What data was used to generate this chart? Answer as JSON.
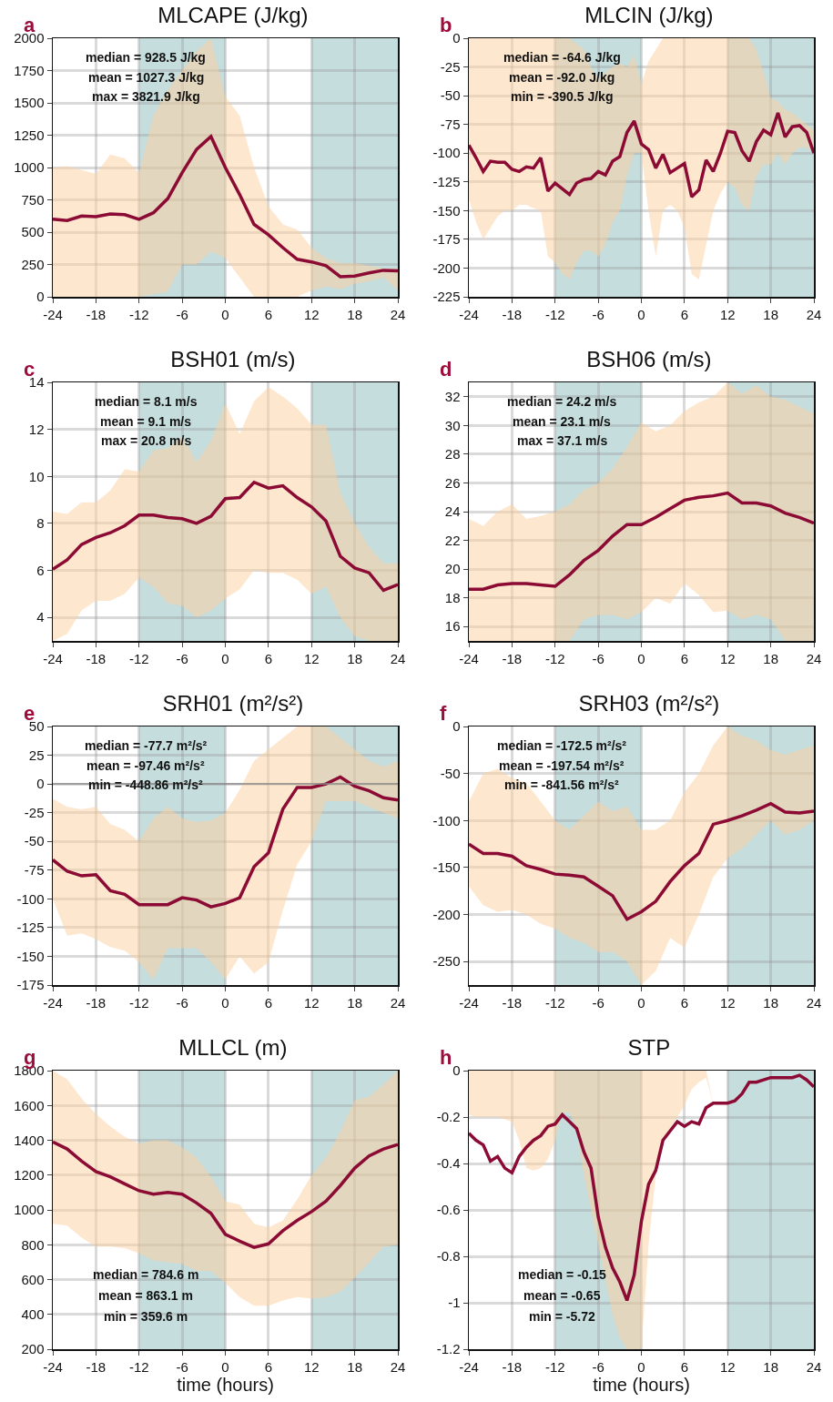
{
  "chart_data": [
    {
      "type": "line",
      "title": "MLCAPE (J/kg)",
      "annotations": [
        "a",
        "median = 928.5 J/kg",
        "mean = 1027.3 J/kg",
        "max = 3821.9 J/kg"
      ],
      "x": [
        -24,
        -22,
        -20,
        -18,
        -16,
        -14,
        -12,
        -10,
        -8,
        -6,
        -4,
        -2,
        0,
        2,
        4,
        6,
        8,
        10,
        12,
        14,
        16,
        18,
        20,
        22,
        24
      ],
      "series": [
        {
          "color": "#8c0b34",
          "values": [
            600,
            590,
            625,
            620,
            640,
            635,
            600,
            650,
            760,
            960,
            1140,
            1240,
            1000,
            790,
            560,
            480,
            380,
            290,
            270,
            240,
            155,
            160,
            185,
            205,
            200
          ],
          "upper": [
            1000,
            1010,
            980,
            950,
            1100,
            1070,
            960,
            1400,
            1600,
            1750,
            1900,
            2000,
            1550,
            1400,
            1000,
            700,
            560,
            520,
            380,
            300,
            260,
            260,
            240,
            220,
            220
          ],
          "lower": [
            0,
            0,
            0,
            0,
            0,
            0,
            0,
            20,
            40,
            250,
            250,
            350,
            300,
            150,
            0,
            0,
            0,
            0,
            50,
            80,
            60,
            100,
            120,
            150,
            50
          ]
        }
      ],
      "xlim": [
        -24,
        24
      ],
      "xticks": [
        -24,
        -18,
        -12,
        -6,
        0,
        6,
        12,
        18,
        24
      ],
      "ylim": [
        0,
        2000
      ],
      "yticks": [
        0,
        250,
        500,
        750,
        1000,
        1250,
        1500,
        1750,
        2000
      ],
      "bands": [
        {
          "axis": "x",
          "from": -12,
          "to": 0,
          "color": "#a7cbcb"
        },
        {
          "axis": "x",
          "from": 12,
          "to": 24,
          "color": "#a7cbcb"
        }
      ],
      "grid": true
    },
    {
      "type": "line",
      "title": "MLCIN (J/kg)",
      "annotations": [
        "b",
        "median = -64.6 J/kg",
        "mean = -92.0 J/kg",
        "min = -390.5 J/kg"
      ],
      "x": [
        -24,
        -23,
        -22,
        -21,
        -20,
        -19,
        -18,
        -17,
        -16,
        -15,
        -14,
        -13,
        -12,
        -11,
        -10,
        -9,
        -8,
        -7,
        -6,
        -5,
        -4,
        -3,
        -2,
        -1,
        0,
        1,
        2,
        3,
        4,
        5,
        6,
        7,
        8,
        9,
        10,
        11,
        12,
        13,
        14,
        15,
        16,
        17,
        18,
        19,
        20,
        21,
        22,
        23,
        24
      ],
      "series": [
        {
          "color": "#8c0b34",
          "values": [
            -93,
            -104,
            -116,
            -107,
            -108,
            -108,
            -114,
            -116,
            -112,
            -113,
            -104,
            -133,
            -126,
            -131,
            -136,
            -126,
            -123,
            -122,
            -116,
            -119,
            -107,
            -103,
            -82,
            -72,
            -92,
            -97,
            -113,
            -101,
            -117,
            -113,
            -109,
            -138,
            -132,
            -106,
            -116,
            -100,
            -81,
            -82,
            -98,
            -107,
            -90,
            -80,
            -84,
            -65,
            -86,
            -77,
            -76,
            -82,
            -100
          ],
          "upper": [
            0,
            0,
            0,
            0,
            0,
            0,
            0,
            0,
            0,
            0,
            0,
            0,
            0,
            0,
            0,
            -5,
            -10,
            -25,
            -35,
            -30,
            -25,
            -22,
            -25,
            -15,
            -40,
            -20,
            -10,
            0,
            0,
            0,
            0,
            0,
            0,
            0,
            0,
            0,
            0,
            0,
            0,
            0,
            -10,
            -30,
            -52,
            -55,
            -62,
            -65,
            -70,
            -75,
            -80
          ],
          "lower": [
            -140,
            -160,
            -175,
            -165,
            -155,
            -150,
            -150,
            -145,
            -145,
            -148,
            -150,
            -190,
            -195,
            -205,
            -210,
            -195,
            -185,
            -185,
            -190,
            -180,
            -160,
            -150,
            -120,
            -100,
            -100,
            -150,
            -190,
            -150,
            -145,
            -150,
            -165,
            -205,
            -210,
            -180,
            -150,
            -135,
            -125,
            -130,
            -145,
            -150,
            -120,
            -110,
            -110,
            -100,
            -110,
            -100,
            -95,
            -95,
            -100
          ]
        }
      ],
      "xlim": [
        -24,
        24
      ],
      "xticks": [
        -24,
        -18,
        -12,
        -6,
        0,
        6,
        12,
        18,
        24
      ],
      "ylim": [
        -225,
        0
      ],
      "yticks": [
        -225,
        -200,
        -175,
        -150,
        -125,
        -100,
        -75,
        -50,
        -25,
        0
      ],
      "bands": [
        {
          "axis": "x",
          "from": -12,
          "to": 0,
          "color": "#a7cbcb"
        },
        {
          "axis": "x",
          "from": 12,
          "to": 24,
          "color": "#a7cbcb"
        }
      ],
      "grid": true
    },
    {
      "type": "line",
      "title": "BSH01 (m/s)",
      "annotations": [
        "c",
        "median = 8.1 m/s",
        "mean = 9.1 m/s",
        "max = 20.8 m/s"
      ],
      "x": [
        -24,
        -22,
        -20,
        -18,
        -16,
        -14,
        -12,
        -10,
        -8,
        -6,
        -4,
        -2,
        0,
        2,
        4,
        6,
        8,
        10,
        12,
        14,
        16,
        18,
        20,
        22,
        24
      ],
      "series": [
        {
          "color": "#8c0b34",
          "values": [
            6.05,
            6.45,
            7.1,
            7.4,
            7.6,
            7.9,
            8.35,
            8.35,
            8.25,
            8.2,
            8.0,
            8.3,
            9.05,
            9.1,
            9.75,
            9.5,
            9.6,
            9.1,
            8.7,
            8.1,
            6.6,
            6.1,
            5.9,
            5.15,
            5.4
          ],
          "upper": [
            8.5,
            8.4,
            8.9,
            8.9,
            9.4,
            10.3,
            10.2,
            11.1,
            11.2,
            11.7,
            10.6,
            11.5,
            13.1,
            11.8,
            13.2,
            13.8,
            13.4,
            12.9,
            12.2,
            12.2,
            9.3,
            8.0,
            7.0,
            6.3,
            6.3
          ],
          "lower": [
            3.0,
            3.3,
            4.3,
            4.7,
            4.7,
            5.0,
            5.7,
            5.3,
            4.6,
            4.5,
            4.0,
            4.3,
            4.8,
            5.2,
            6.0,
            5.9,
            5.9,
            5.6,
            5.0,
            5.3,
            4.0,
            3.2,
            3.0,
            3.0,
            3.0
          ]
        }
      ],
      "xlim": [
        -24,
        24
      ],
      "xticks": [
        -24,
        -18,
        -12,
        -6,
        0,
        6,
        12,
        18,
        24
      ],
      "ylim": [
        3,
        14
      ],
      "yticks": [
        4,
        6,
        8,
        10,
        12,
        14
      ],
      "bands": [
        {
          "axis": "x",
          "from": -12,
          "to": 0,
          "color": "#a7cbcb"
        },
        {
          "axis": "x",
          "from": 12,
          "to": 24,
          "color": "#a7cbcb"
        }
      ],
      "grid": true
    },
    {
      "type": "line",
      "title": "BSH06 (m/s)",
      "annotations": [
        "d",
        "median = 24.2 m/s",
        "mean = 23.1 m/s",
        "max = 37.1 m/s"
      ],
      "x": [
        -24,
        -22,
        -20,
        -18,
        -16,
        -14,
        -12,
        -10,
        -8,
        -6,
        -4,
        -2,
        0,
        2,
        4,
        6,
        8,
        10,
        12,
        14,
        16,
        18,
        20,
        22,
        24
      ],
      "series": [
        {
          "color": "#8c0b34",
          "values": [
            18.6,
            18.6,
            18.9,
            19.0,
            19.0,
            18.9,
            18.8,
            19.6,
            20.6,
            21.3,
            22.3,
            23.1,
            23.1,
            23.6,
            24.2,
            24.8,
            25.0,
            25.1,
            25.3,
            24.6,
            24.6,
            24.4,
            23.9,
            23.6,
            23.2
          ],
          "upper": [
            23.5,
            23.0,
            24.0,
            24.5,
            23.5,
            23.7,
            24.0,
            24.5,
            25.5,
            26.0,
            27.0,
            28.5,
            30.2,
            29.6,
            30.0,
            31.0,
            31.6,
            32.0,
            33.0,
            32.2,
            32.8,
            32.0,
            31.8,
            31.3,
            30.8
          ],
          "lower": [
            15.0,
            15.0,
            15.0,
            15.0,
            15.0,
            15.0,
            15.0,
            15.0,
            16.5,
            16.8,
            16.8,
            16.5,
            17.0,
            18.0,
            17.6,
            19.0,
            18.2,
            17.0,
            17.1,
            16.5,
            16.8,
            16.5,
            15.0,
            15.0,
            15.0
          ]
        }
      ],
      "xlim": [
        -24,
        24
      ],
      "xticks": [
        -24,
        -18,
        -12,
        -6,
        0,
        6,
        12,
        18,
        24
      ],
      "ylim": [
        15,
        33
      ],
      "yticks": [
        16,
        18,
        20,
        22,
        24,
        26,
        28,
        30,
        32
      ],
      "bands": [
        {
          "axis": "x",
          "from": -12,
          "to": 0,
          "color": "#a7cbcb"
        },
        {
          "axis": "x",
          "from": 12,
          "to": 24,
          "color": "#a7cbcb"
        }
      ],
      "grid": true
    },
    {
      "type": "line",
      "title": "SRH01 (m²/s²)",
      "annotations": [
        "e",
        "median = -77.7 m²/s²",
        "mean = -97.46 m²/s²",
        "min = -448.86 m²/s²"
      ],
      "x": [
        -24,
        -22,
        -20,
        -18,
        -16,
        -14,
        -12,
        -10,
        -8,
        -6,
        -4,
        -2,
        0,
        2,
        4,
        6,
        8,
        10,
        12,
        14,
        16,
        18,
        20,
        22,
        24
      ],
      "series": [
        {
          "color": "#8c0b34",
          "values": [
            -66,
            -76,
            -80,
            -79,
            -93,
            -96,
            -105,
            -105,
            -105,
            -99,
            -101,
            -107,
            -104,
            -99,
            -72,
            -60,
            -22,
            -3,
            -3,
            0,
            6,
            -2,
            -6,
            -12,
            -14
          ],
          "upper": [
            -13,
            -20,
            -22,
            -20,
            -35,
            -40,
            -50,
            -30,
            -20,
            -30,
            -33,
            -32,
            -25,
            -5,
            20,
            30,
            40,
            50,
            50,
            50,
            40,
            30,
            20,
            15,
            20
          ],
          "lower": [
            -100,
            -132,
            -130,
            -135,
            -142,
            -145,
            -155,
            -170,
            -143,
            -143,
            -143,
            -155,
            -170,
            -150,
            -165,
            -155,
            -110,
            -70,
            -50,
            -15,
            -15,
            -15,
            -20,
            -25,
            -30
          ]
        }
      ],
      "xlim": [
        -24,
        24
      ],
      "xticks": [
        -24,
        -18,
        -12,
        -6,
        0,
        6,
        12,
        18,
        24
      ],
      "ylim": [
        -175,
        50
      ],
      "yticks": [
        -175,
        -150,
        -125,
        -100,
        -75,
        -50,
        -25,
        0,
        25,
        50
      ],
      "ref_lines": [
        {
          "axis": "y",
          "value": 0,
          "color": "#8a8a8a"
        }
      ],
      "bands": [
        {
          "axis": "x",
          "from": -12,
          "to": 0,
          "color": "#a7cbcb"
        },
        {
          "axis": "x",
          "from": 12,
          "to": 24,
          "color": "#a7cbcb"
        }
      ],
      "grid": true
    },
    {
      "type": "line",
      "title": "SRH03 (m²/s²)",
      "annotations": [
        "f",
        "median = -172.5 m²/s²",
        "mean = -197.54 m²/s²",
        "min = -841.56 m²/s²"
      ],
      "x": [
        -24,
        -22,
        -20,
        -18,
        -16,
        -14,
        -12,
        -10,
        -8,
        -6,
        -4,
        -2,
        0,
        2,
        4,
        6,
        8,
        10,
        12,
        14,
        16,
        18,
        20,
        22,
        24
      ],
      "series": [
        {
          "color": "#8c0b34",
          "values": [
            -125,
            -135,
            -135,
            -138,
            -148,
            -152,
            -157,
            -158,
            -160,
            -170,
            -180,
            -205,
            -197,
            -186,
            -165,
            -148,
            -135,
            -104,
            -100,
            -95,
            -89,
            -82,
            -91,
            -92,
            -90
          ],
          "upper": [
            -80,
            -50,
            -45,
            -55,
            -60,
            -80,
            -100,
            -110,
            -95,
            -80,
            -90,
            -85,
            -110,
            -110,
            -100,
            -70,
            -50,
            -20,
            0,
            -10,
            -15,
            -25,
            -30,
            -25,
            -20
          ],
          "lower": [
            -170,
            -190,
            -197,
            -195,
            -200,
            -210,
            -215,
            -225,
            -230,
            -240,
            -240,
            -250,
            -275,
            -260,
            -225,
            -235,
            -200,
            -160,
            -140,
            -130,
            -115,
            -100,
            -115,
            -110,
            -100
          ]
        }
      ],
      "xlim": [
        -24,
        24
      ],
      "xticks": [
        -24,
        -18,
        -12,
        -6,
        0,
        6,
        12,
        18,
        24
      ],
      "ylim": [
        -275,
        0
      ],
      "yticks": [
        -250,
        -200,
        -150,
        -100,
        -50,
        0
      ],
      "bands": [
        {
          "axis": "x",
          "from": -12,
          "to": 0,
          "color": "#a7cbcb"
        },
        {
          "axis": "x",
          "from": 12,
          "to": 24,
          "color": "#a7cbcb"
        }
      ],
      "grid": true
    },
    {
      "type": "line",
      "title": "MLLCL (m)",
      "xlabel": "time (hours)",
      "annotations": [
        "g",
        "median = 784.6 m",
        "mean = 863.1 m",
        "min = 359.6 m"
      ],
      "x": [
        -24,
        -22,
        -20,
        -18,
        -16,
        -14,
        -12,
        -10,
        -8,
        -6,
        -4,
        -2,
        0,
        2,
        4,
        6,
        8,
        10,
        12,
        14,
        16,
        18,
        20,
        22,
        24
      ],
      "series": [
        {
          "color": "#8c0b34",
          "values": [
            1390,
            1350,
            1280,
            1220,
            1190,
            1150,
            1110,
            1090,
            1100,
            1090,
            1040,
            980,
            860,
            820,
            785,
            805,
            880,
            940,
            990,
            1050,
            1140,
            1240,
            1310,
            1350,
            1375
          ],
          "upper": [
            1800,
            1750,
            1640,
            1550,
            1480,
            1420,
            1380,
            1400,
            1400,
            1360,
            1300,
            1190,
            1050,
            1030,
            920,
            900,
            940,
            1060,
            1200,
            1300,
            1450,
            1630,
            1650,
            1720,
            1800
          ],
          "lower": [
            920,
            910,
            840,
            790,
            790,
            780,
            750,
            710,
            700,
            690,
            650,
            650,
            580,
            500,
            450,
            450,
            480,
            500,
            490,
            500,
            530,
            610,
            700,
            790,
            800
          ]
        }
      ],
      "xlim": [
        -24,
        24
      ],
      "xticks": [
        -24,
        -18,
        -12,
        -6,
        0,
        6,
        12,
        18,
        24
      ],
      "ylim": [
        200,
        1800
      ],
      "yticks": [
        200,
        400,
        600,
        800,
        1000,
        1200,
        1400,
        1600,
        1800
      ],
      "bands": [
        {
          "axis": "x",
          "from": -12,
          "to": 0,
          "color": "#a7cbcb"
        },
        {
          "axis": "x",
          "from": 12,
          "to": 24,
          "color": "#a7cbcb"
        }
      ],
      "grid": true
    },
    {
      "type": "line",
      "title": "STP",
      "xlabel": "time (hours)",
      "annotations": [
        "h",
        "median = -0.15",
        "mean = -0.65",
        "min = -5.72"
      ],
      "x": [
        -24,
        -23,
        -22,
        -21,
        -20,
        -19,
        -18,
        -17,
        -16,
        -15,
        -14,
        -13,
        -12,
        -11,
        -10,
        -9,
        -8,
        -7,
        -6,
        -5,
        -4,
        -3,
        -2,
        -1,
        0,
        1,
        2,
        3,
        4,
        5,
        6,
        7,
        8,
        9,
        10,
        11,
        12,
        13,
        14,
        15,
        16,
        17,
        18,
        19,
        20,
        21,
        22,
        23,
        24
      ],
      "series": [
        {
          "color": "#8c0b34",
          "values": [
            -0.27,
            -0.3,
            -0.32,
            -0.39,
            -0.37,
            -0.42,
            -0.44,
            -0.37,
            -0.33,
            -0.3,
            -0.28,
            -0.24,
            -0.23,
            -0.19,
            -0.22,
            -0.25,
            -0.35,
            -0.42,
            -0.63,
            -0.76,
            -0.85,
            -0.91,
            -0.99,
            -0.88,
            -0.65,
            -0.49,
            -0.43,
            -0.3,
            -0.26,
            -0.22,
            -0.24,
            -0.22,
            -0.23,
            -0.16,
            -0.14,
            -0.14,
            -0.14,
            -0.13,
            -0.1,
            -0.05,
            -0.05,
            -0.04,
            -0.03,
            -0.03,
            -0.03,
            -0.03,
            -0.02,
            -0.04,
            -0.07
          ],
          "upper": [
            0,
            0,
            0,
            0,
            0,
            0,
            0,
            0,
            0,
            0,
            0,
            0,
            0,
            0,
            0,
            0,
            0,
            0,
            0,
            0,
            0,
            0,
            0,
            0,
            0,
            0,
            0,
            0,
            0,
            0,
            0,
            0,
            0,
            0,
            -0.14,
            -0.14,
            -0.14,
            -0.13,
            -0.1,
            -0.05,
            -0.05,
            -0.04,
            -0.03,
            -0.03,
            -0.03,
            -0.03,
            -0.02,
            -0.04,
            -0.07
          ],
          "lower": [
            -0.19,
            -0.2,
            -0.2,
            -0.2,
            -0.2,
            -0.21,
            -0.22,
            -0.3,
            -0.42,
            -0.43,
            -0.42,
            -0.38,
            -0.3,
            -0.18,
            -0.18,
            -0.25,
            -0.45,
            -0.6,
            -0.75,
            -0.9,
            -1.05,
            -1.15,
            -1.2,
            -1.2,
            -1.2,
            -0.75,
            -0.45,
            -0.3,
            -0.25,
            -0.2,
            -0.15,
            -0.08,
            -0.05,
            -0.03,
            -0.14,
            -0.14,
            -0.14,
            -0.13,
            -0.1,
            -0.05,
            -0.05,
            -0.04,
            -0.03,
            -0.03,
            -0.03,
            -0.03,
            -0.02,
            -0.04,
            -0.07
          ]
        }
      ],
      "xlim": [
        -24,
        24
      ],
      "xticks": [
        -24,
        -18,
        -12,
        -6,
        0,
        6,
        12,
        18,
        24
      ],
      "ylim": [
        -1.2,
        0
      ],
      "yticks": [
        -1.2,
        -1,
        -0.8,
        -0.6,
        -0.4,
        -0.2,
        0
      ],
      "bands": [
        {
          "axis": "x",
          "from": -12,
          "to": 0,
          "color": "#a7cbcb"
        },
        {
          "axis": "x",
          "from": 12,
          "to": 24,
          "color": "#a7cbcb"
        }
      ],
      "grid": true
    }
  ]
}
